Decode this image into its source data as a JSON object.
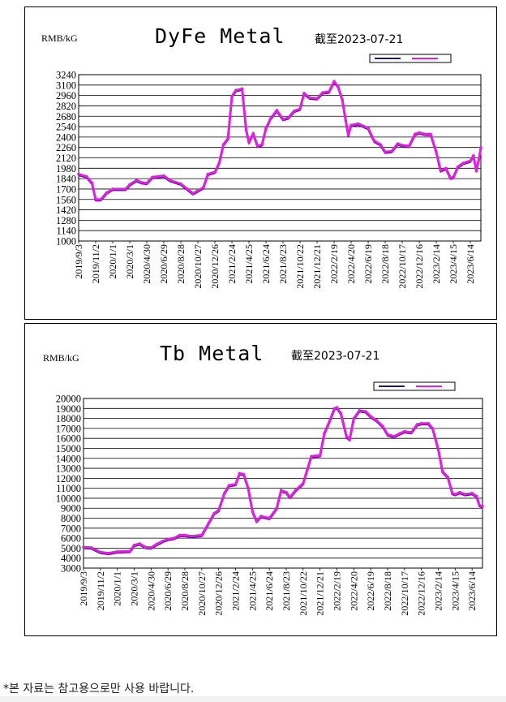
{
  "chart_data": [
    {
      "type": "line",
      "title": "DyFe Metal",
      "unit_label": "RMB/kG",
      "date_label": "截至2023-07-21",
      "ylim": [
        1000,
        3240
      ],
      "yticks": [
        1000,
        1140,
        1280,
        1420,
        1560,
        1700,
        1840,
        1980,
        2120,
        2260,
        2400,
        2540,
        2680,
        2820,
        2960,
        3100,
        3240
      ],
      "grid": true,
      "legend": "top-right",
      "series_colors": [
        "#1a1a6e",
        "#e21ee2"
      ],
      "categories": [
        "2019/9/3",
        "2019/11/2",
        "2020/1/1",
        "2020/3/1",
        "2020/4/30",
        "2020/6/29",
        "2020/8/28",
        "2020/10/27",
        "2020/12/26",
        "2021/2/24",
        "2021/4/25",
        "2021/6/24",
        "2021/8/23",
        "2021/10/22",
        "2021/12/21",
        "2022/2/19",
        "2022/4/20",
        "2022/6/19",
        "2022/8/18",
        "2022/10/17",
        "2022/12/16",
        "2023/2/14",
        "2023/4/15",
        "2023/6/14"
      ],
      "points": [
        [
          "2019/9/3",
          1900
        ],
        [
          "2019/10/1",
          1870
        ],
        [
          "2019/10/20",
          1780
        ],
        [
          "2019/11/2",
          1560
        ],
        [
          "2019/11/20",
          1560
        ],
        [
          "2019/12/10",
          1650
        ],
        [
          "2020/1/1",
          1700
        ],
        [
          "2020/2/15",
          1700
        ],
        [
          "2020/3/1",
          1760
        ],
        [
          "2020/3/25",
          1820
        ],
        [
          "2020/4/10",
          1790
        ],
        [
          "2020/4/30",
          1780
        ],
        [
          "2020/5/20",
          1860
        ],
        [
          "2020/6/29",
          1880
        ],
        [
          "2020/7/20",
          1820
        ],
        [
          "2020/8/28",
          1770
        ],
        [
          "2020/9/20",
          1700
        ],
        [
          "2020/10/10",
          1640
        ],
        [
          "2020/10/27",
          1680
        ],
        [
          "2020/11/15",
          1720
        ],
        [
          "2020/12/1",
          1900
        ],
        [
          "2020/12/26",
          1930
        ],
        [
          "2021/1/10",
          2050
        ],
        [
          "2021/1/25",
          2300
        ],
        [
          "2021/2/10",
          2380
        ],
        [
          "2021/2/24",
          2950
        ],
        [
          "2021/3/10",
          3030
        ],
        [
          "2021/4/1",
          3050
        ],
        [
          "2021/4/15",
          2500
        ],
        [
          "2021/4/25",
          2330
        ],
        [
          "2021/5/10",
          2450
        ],
        [
          "2021/5/25",
          2280
        ],
        [
          "2021/6/10",
          2300
        ],
        [
          "2021/6/24",
          2520
        ],
        [
          "2021/7/10",
          2650
        ],
        [
          "2021/8/1",
          2760
        ],
        [
          "2021/8/23",
          2640
        ],
        [
          "2021/9/10",
          2660
        ],
        [
          "2021/10/1",
          2750
        ],
        [
          "2021/10/22",
          2780
        ],
        [
          "2021/11/5",
          2990
        ],
        [
          "2021/11/25",
          2930
        ],
        [
          "2021/12/21",
          2920
        ],
        [
          "2022/1/10",
          3000
        ],
        [
          "2022/2/1",
          3010
        ],
        [
          "2022/2/19",
          3150
        ],
        [
          "2022/3/5",
          3080
        ],
        [
          "2022/3/20",
          2900
        ],
        [
          "2022/4/1",
          2620
        ],
        [
          "2022/4/10",
          2430
        ],
        [
          "2022/4/20",
          2560
        ],
        [
          "2022/5/15",
          2580
        ],
        [
          "2022/6/19",
          2520
        ],
        [
          "2022/7/10",
          2350
        ],
        [
          "2022/8/1",
          2300
        ],
        [
          "2022/8/18",
          2200
        ],
        [
          "2022/9/10",
          2210
        ],
        [
          "2022/10/1",
          2310
        ],
        [
          "2022/10/17",
          2290
        ],
        [
          "2022/11/10",
          2280
        ],
        [
          "2022/12/1",
          2440
        ],
        [
          "2022/12/16",
          2460
        ],
        [
          "2023/1/5",
          2440
        ],
        [
          "2023/1/25",
          2440
        ],
        [
          "2023/2/14",
          2200
        ],
        [
          "2023/3/1",
          1950
        ],
        [
          "2023/3/20",
          1980
        ],
        [
          "2023/4/5",
          1850
        ],
        [
          "2023/4/15",
          1860
        ],
        [
          "2023/5/1",
          2000
        ],
        [
          "2023/5/20",
          2050
        ],
        [
          "2023/6/14",
          2080
        ],
        [
          "2023/6/25",
          2150
        ],
        [
          "2023/7/5",
          1950
        ],
        [
          "2023/7/15",
          2120
        ],
        [
          "2023/7/21",
          2260
        ]
      ]
    },
    {
      "type": "line",
      "title": "Tb Metal",
      "unit_label": "RMB/kG",
      "date_label": "截至2023-07-21",
      "ylim": [
        3000,
        20000
      ],
      "yticks": [
        3000,
        4000,
        5000,
        6000,
        7000,
        8000,
        9000,
        10000,
        11000,
        12000,
        13000,
        14000,
        15000,
        16000,
        17000,
        18000,
        19000,
        20000
      ],
      "grid": true,
      "legend": "top-right",
      "series_colors": [
        "#1a1a6e",
        "#e21ee2"
      ],
      "categories": [
        "2019/9/3",
        "2019/11/2",
        "2020/1/1",
        "2020/3/1",
        "2020/4/30",
        "2020/6/29",
        "2020/8/28",
        "2020/10/27",
        "2020/12/26",
        "2021/2/24",
        "2021/4/25",
        "2021/6/24",
        "2021/8/23",
        "2021/10/22",
        "2021/12/21",
        "2022/2/19",
        "2022/4/20",
        "2022/6/19",
        "2022/8/18",
        "2022/10/17",
        "2022/12/16",
        "2023/2/14",
        "2023/4/15",
        "2023/6/14"
      ],
      "points": [
        [
          "2019/9/3",
          5100
        ],
        [
          "2019/10/1",
          5050
        ],
        [
          "2019/11/2",
          4600
        ],
        [
          "2019/12/1",
          4500
        ],
        [
          "2020/1/1",
          4650
        ],
        [
          "2020/2/15",
          4700
        ],
        [
          "2020/3/1",
          5300
        ],
        [
          "2020/3/20",
          5450
        ],
        [
          "2020/4/10",
          5100
        ],
        [
          "2020/4/30",
          5050
        ],
        [
          "2020/5/20",
          5400
        ],
        [
          "2020/6/10",
          5700
        ],
        [
          "2020/6/29",
          5900
        ],
        [
          "2020/7/20",
          6000
        ],
        [
          "2020/8/10",
          6300
        ],
        [
          "2020/8/28",
          6300
        ],
        [
          "2020/9/20",
          6200
        ],
        [
          "2020/10/27",
          6300
        ],
        [
          "2020/11/20",
          7500
        ],
        [
          "2020/12/10",
          8500
        ],
        [
          "2020/12/26",
          8800
        ],
        [
          "2021/1/15",
          10500
        ],
        [
          "2021/2/1",
          11300
        ],
        [
          "2021/2/24",
          11400
        ],
        [
          "2021/3/10",
          12500
        ],
        [
          "2021/3/25",
          12400
        ],
        [
          "2021/4/10",
          11000
        ],
        [
          "2021/4/25",
          8700
        ],
        [
          "2021/5/10",
          7700
        ],
        [
          "2021/5/25",
          8200
        ],
        [
          "2021/6/24",
          8000
        ],
        [
          "2021/7/20",
          9000
        ],
        [
          "2021/8/5",
          10800
        ],
        [
          "2021/8/23",
          10600
        ],
        [
          "2021/9/5",
          10100
        ],
        [
          "2021/9/25",
          10800
        ],
        [
          "2021/10/22",
          11500
        ],
        [
          "2021/11/5",
          12800
        ],
        [
          "2021/11/20",
          14200
        ],
        [
          "2021/12/21",
          14300
        ],
        [
          "2022/1/5",
          16500
        ],
        [
          "2022/1/25",
          17800
        ],
        [
          "2022/2/10",
          19000
        ],
        [
          "2022/2/19",
          19100
        ],
        [
          "2022/3/5",
          18500
        ],
        [
          "2022/3/25",
          16200
        ],
        [
          "2022/4/5",
          15900
        ],
        [
          "2022/4/20",
          18000
        ],
        [
          "2022/5/10",
          18800
        ],
        [
          "2022/6/1",
          18700
        ],
        [
          "2022/6/19",
          18200
        ],
        [
          "2022/7/10",
          17800
        ],
        [
          "2022/8/1",
          17200
        ],
        [
          "2022/8/18",
          16400
        ],
        [
          "2022/9/10",
          16200
        ],
        [
          "2022/10/1",
          16500
        ],
        [
          "2022/10/17",
          16700
        ],
        [
          "2022/11/10",
          16600
        ],
        [
          "2022/12/1",
          17400
        ],
        [
          "2022/12/16",
          17500
        ],
        [
          "2023/1/10",
          17500
        ],
        [
          "2023/1/25",
          17000
        ],
        [
          "2023/2/14",
          14900
        ],
        [
          "2023/3/1",
          12700
        ],
        [
          "2023/3/20",
          12100
        ],
        [
          "2023/4/5",
          10500
        ],
        [
          "2023/4/15",
          10400
        ],
        [
          "2023/5/1",
          10600
        ],
        [
          "2023/5/20",
          10400
        ],
        [
          "2023/6/14",
          10500
        ],
        [
          "2023/6/30",
          10200
        ],
        [
          "2023/7/10",
          9300
        ],
        [
          "2023/7/21",
          9200
        ]
      ]
    }
  ],
  "footnote": "*본 자료는 참고용으로만 사용 바랍니다."
}
